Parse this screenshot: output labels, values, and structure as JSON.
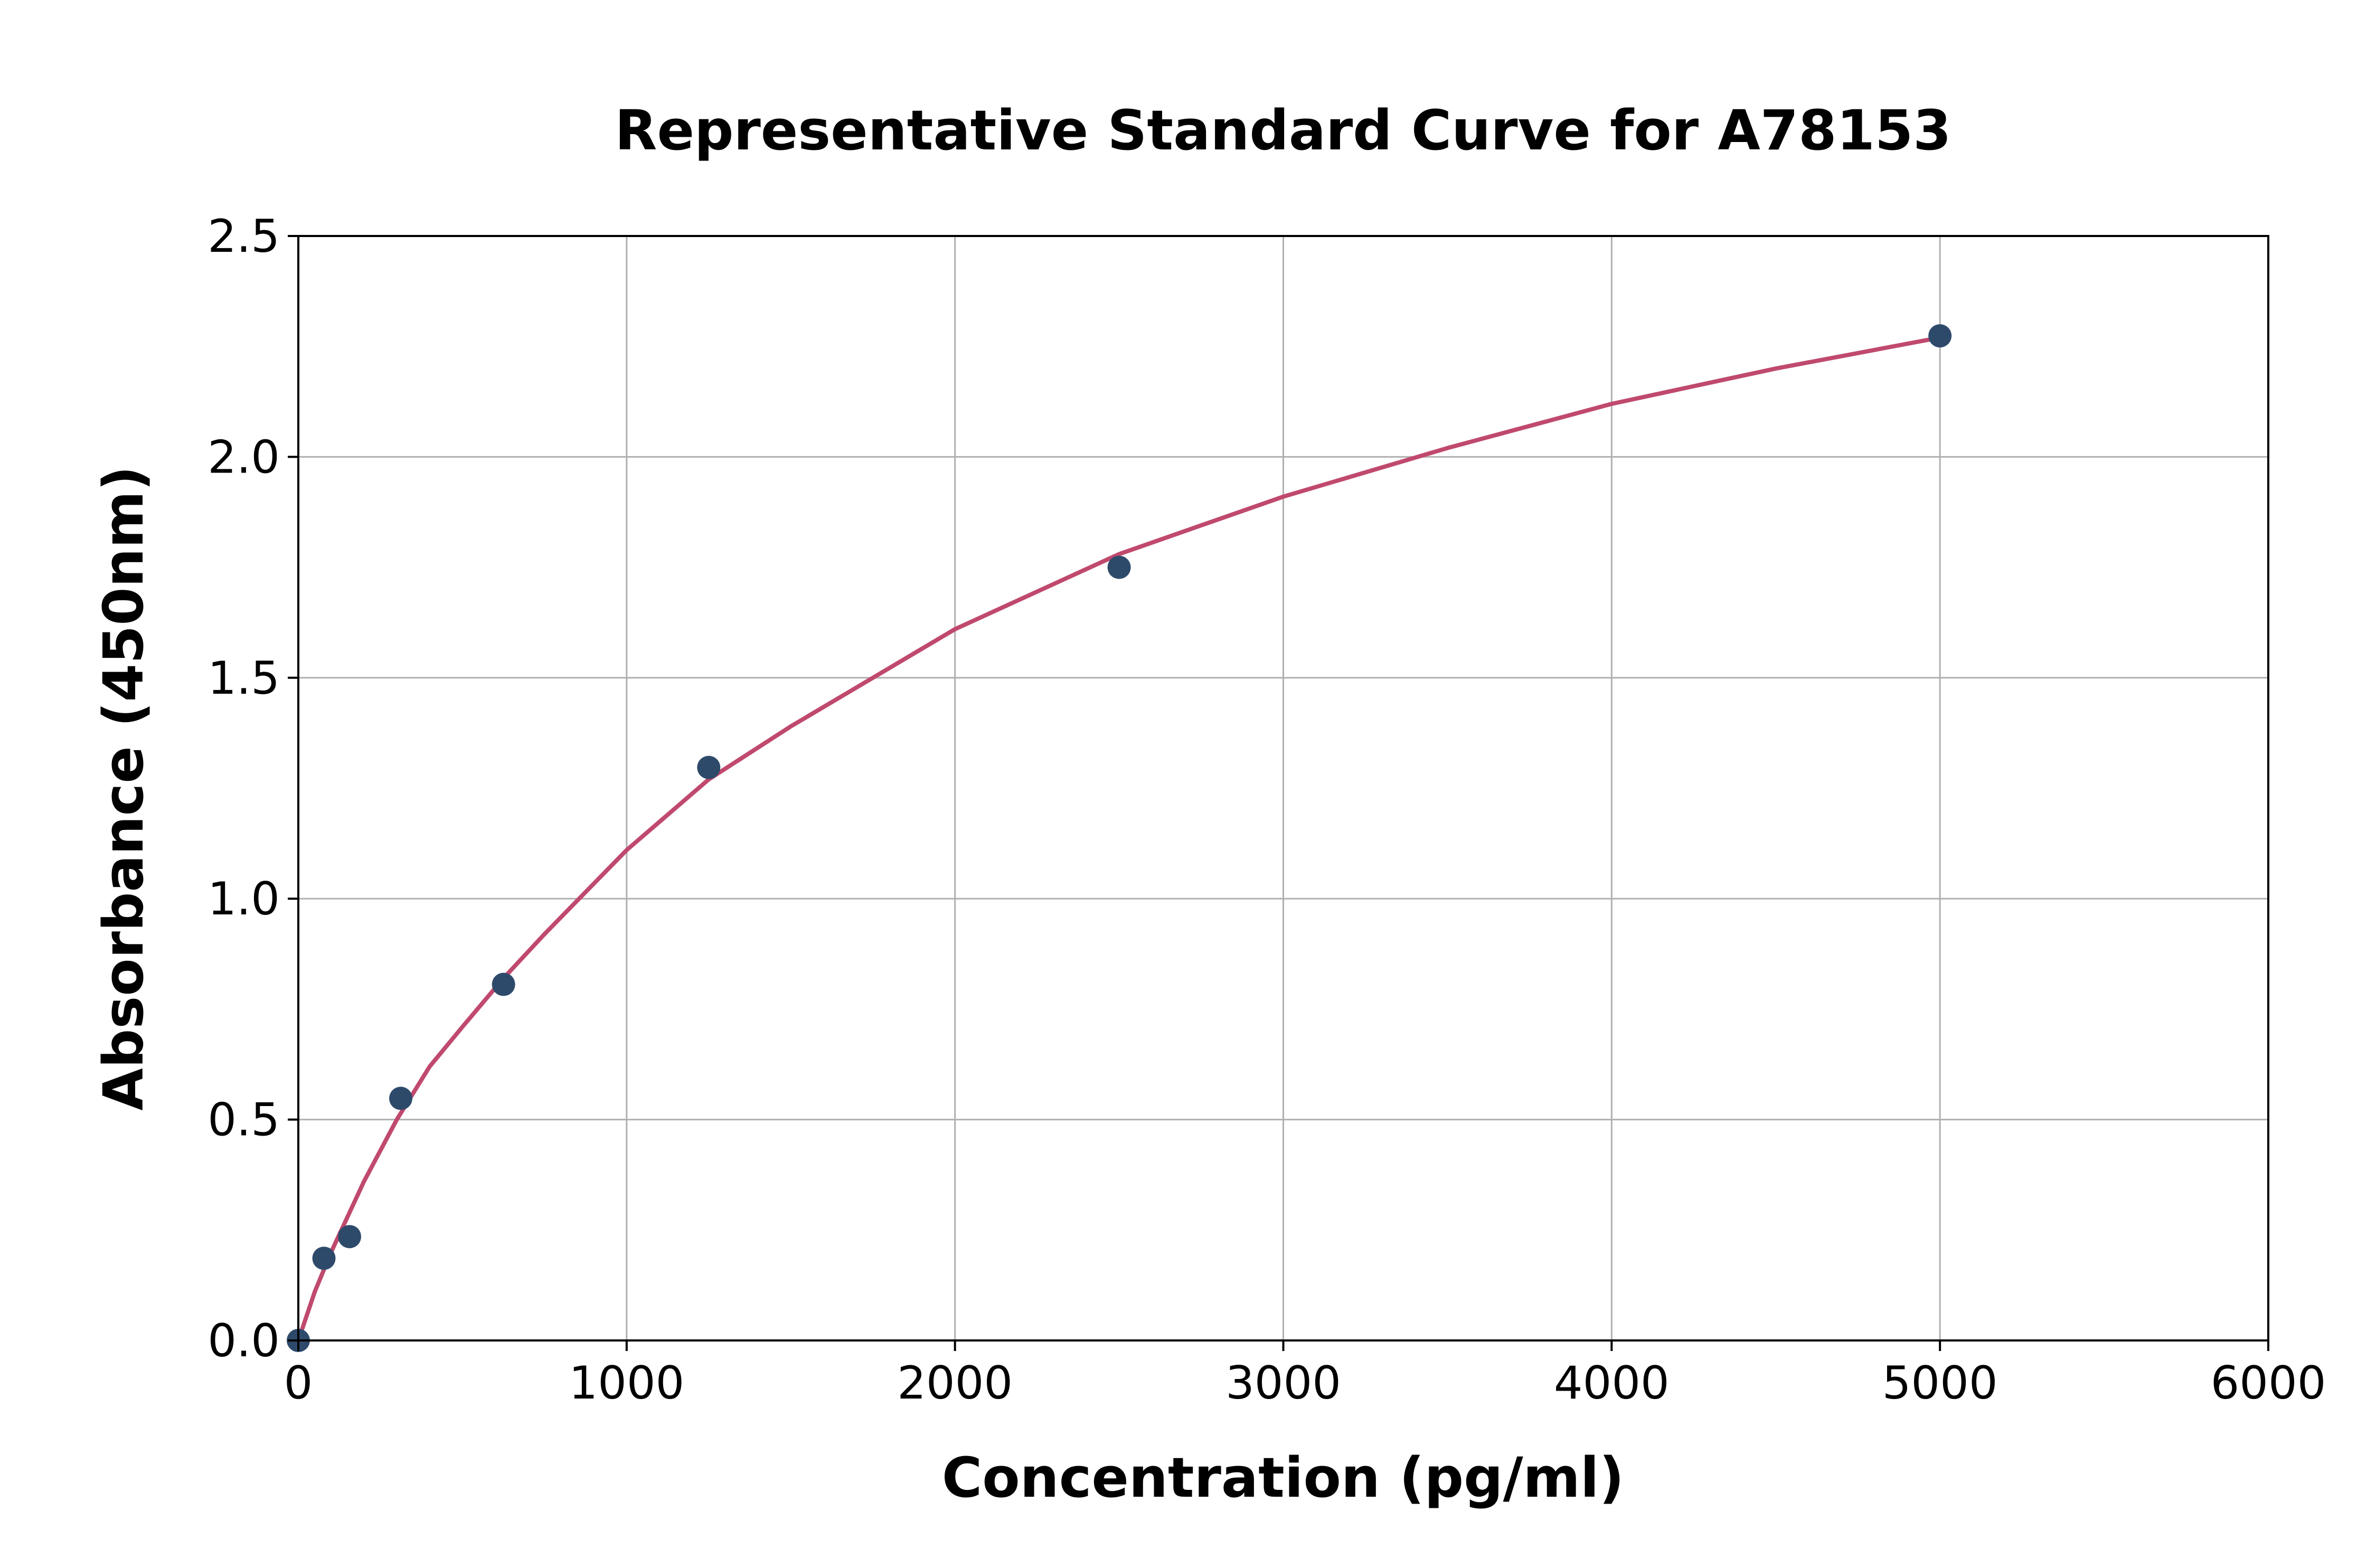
{
  "chart_data": {
    "type": "scatter",
    "title": "Representative Standard Curve for A78153",
    "xlabel": "Concentration (pg/ml)",
    "ylabel": "Absorbance (450nm)",
    "xlim": [
      0,
      6000
    ],
    "ylim": [
      0,
      2.5
    ],
    "xticks": [
      "0",
      "1000",
      "2000",
      "3000",
      "4000",
      "5000",
      "6000"
    ],
    "yticks": [
      "0.0",
      "0.5",
      "1.0",
      "1.5",
      "2.0",
      "2.5"
    ],
    "grid": true,
    "points": {
      "x": [
        0,
        78,
        156,
        312,
        625,
        1250,
        2500,
        5000
      ],
      "y": [
        0.0,
        0.186,
        0.235,
        0.548,
        0.806,
        1.297,
        1.75,
        2.274
      ],
      "color": "#2e4a6b"
    },
    "fit_curve": {
      "x": [
        0,
        50,
        100,
        200,
        300,
        400,
        500,
        625,
        750,
        1000,
        1250,
        1500,
        2000,
        2500,
        3000,
        3500,
        4000,
        4500,
        5000
      ],
      "y": [
        0.0,
        0.11,
        0.2,
        0.36,
        0.5,
        0.62,
        0.71,
        0.82,
        0.92,
        1.11,
        1.27,
        1.39,
        1.61,
        1.78,
        1.91,
        2.02,
        2.12,
        2.2,
        2.27
      ],
      "color": "#c0496e"
    }
  }
}
